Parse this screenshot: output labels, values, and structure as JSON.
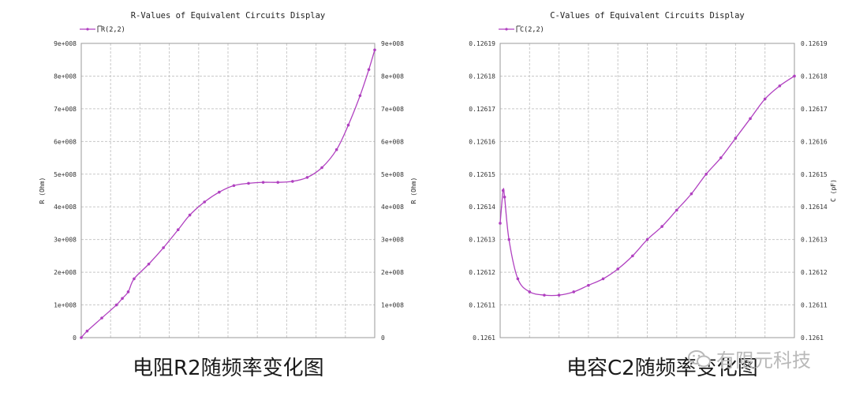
{
  "chart_data": [
    {
      "type": "line",
      "title": "R-Values of Equivalent Circuits Display",
      "legend": "R(2,2)",
      "legend_position": "top-left",
      "xlabel": "",
      "ylabel_left": "R (Ohm)",
      "ylabel_right": "R (Ohm)",
      "ylim": [
        0,
        900000000
      ],
      "yticks": [
        "0",
        "1e+008",
        "2e+008",
        "3e+008",
        "4e+008",
        "5e+008",
        "6e+008",
        "7e+008",
        "8e+008",
        "9e+008"
      ],
      "grid": true,
      "color": "#b040c0",
      "series": [
        {
          "name": "R(2,2)",
          "x": [
            0,
            0.02,
            0.07,
            0.12,
            0.14,
            0.16,
            0.18,
            0.23,
            0.28,
            0.33,
            0.37,
            0.42,
            0.47,
            0.52,
            0.57,
            0.62,
            0.67,
            0.72,
            0.77,
            0.82,
            0.87,
            0.91,
            0.95,
            0.98,
            1.0
          ],
          "y": [
            0,
            20000000,
            60000000,
            100000000,
            120000000,
            140000000,
            180000000,
            225000000,
            275000000,
            330000000,
            375000000,
            415000000,
            445000000,
            465000000,
            472000000,
            475000000,
            475000000,
            478000000,
            490000000,
            520000000,
            575000000,
            650000000,
            740000000,
            820000000,
            880000000
          ]
        }
      ]
    },
    {
      "type": "line",
      "title": "C-Values of Equivalent Circuits Display",
      "legend": "C(2,2)",
      "legend_position": "top-left",
      "xlabel": "",
      "ylabel_left": "",
      "ylabel_right": "C (pF)",
      "ylim": [
        0.1261,
        0.12619
      ],
      "yticks": [
        "0.1261",
        "0.12611",
        "0.12612",
        "0.12613",
        "0.12614",
        "0.12615",
        "0.12616",
        "0.12617",
        "0.12618",
        "0.12619"
      ],
      "grid": true,
      "color": "#b040c0",
      "series": [
        {
          "name": "C(2,2)",
          "x": [
            0,
            0.01,
            0.015,
            0.03,
            0.06,
            0.1,
            0.15,
            0.2,
            0.25,
            0.3,
            0.35,
            0.4,
            0.45,
            0.5,
            0.55,
            0.6,
            0.65,
            0.7,
            0.75,
            0.8,
            0.85,
            0.9,
            0.95,
            1.0
          ],
          "y": [
            0.126135,
            0.126145,
            0.126143,
            0.12613,
            0.126118,
            0.126114,
            0.126113,
            0.126113,
            0.126114,
            0.126116,
            0.126118,
            0.126121,
            0.126125,
            0.12613,
            0.126134,
            0.126139,
            0.126144,
            0.12615,
            0.126155,
            0.126161,
            0.126167,
            0.126173,
            0.126177,
            0.12618
          ]
        }
      ]
    }
  ],
  "captions": {
    "left": "电阻R2随频率变化图",
    "right": "电容C2随频率变化图"
  },
  "watermark": {
    "text": "有限元科技",
    "icon": "wechat-icon"
  }
}
